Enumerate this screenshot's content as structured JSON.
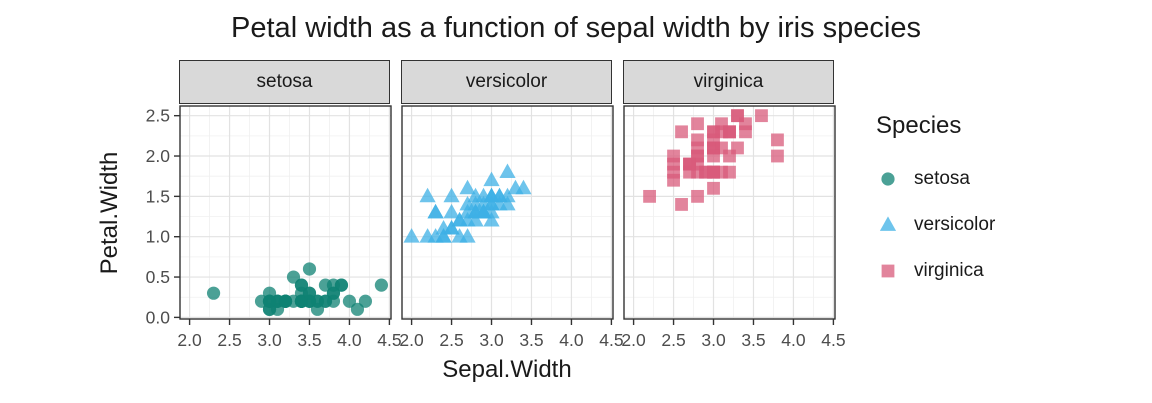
{
  "chart_data": {
    "type": "scatter",
    "title": "Petal width as a function of sepal width by iris species",
    "xlabel": "Sepal.Width",
    "ylabel": "Petal.Width",
    "xlim": [
      1.88,
      4.52
    ],
    "ylim": [
      -0.02,
      2.62
    ],
    "grid": "major+minor",
    "x_ticks": {
      "values": [
        2.0,
        2.5,
        3.0,
        3.5,
        4.0,
        4.5
      ],
      "labels": [
        "2.0",
        "2.5",
        "3.0",
        "3.5",
        "4.0",
        "4.5"
      ]
    },
    "y_ticks": {
      "values": [
        0.0,
        0.5,
        1.0,
        1.5,
        2.0,
        2.5
      ],
      "labels": [
        "0.0",
        "0.5",
        "1.0",
        "1.5",
        "2.0",
        "2.5"
      ]
    },
    "x_minor": [
      2.25,
      2.75,
      3.25,
      3.75,
      4.25
    ],
    "y_minor": [
      0.25,
      0.75,
      1.25,
      1.75,
      2.25
    ],
    "facets": [
      {
        "label": "setosa"
      },
      {
        "label": "versicolor"
      },
      {
        "label": "virginica"
      }
    ],
    "series": [
      {
        "name": "setosa",
        "marker": "circle",
        "color": "#0f8173",
        "points": [
          [
            3.5,
            0.2
          ],
          [
            3.0,
            0.2
          ],
          [
            3.2,
            0.2
          ],
          [
            3.1,
            0.2
          ],
          [
            3.6,
            0.2
          ],
          [
            3.9,
            0.4
          ],
          [
            3.4,
            0.3
          ],
          [
            3.4,
            0.2
          ],
          [
            2.9,
            0.2
          ],
          [
            3.1,
            0.1
          ],
          [
            3.7,
            0.2
          ],
          [
            3.4,
            0.2
          ],
          [
            3.0,
            0.1
          ],
          [
            3.0,
            0.1
          ],
          [
            4.0,
            0.2
          ],
          [
            4.4,
            0.4
          ],
          [
            3.9,
            0.4
          ],
          [
            3.5,
            0.3
          ],
          [
            3.8,
            0.3
          ],
          [
            3.8,
            0.3
          ],
          [
            3.4,
            0.2
          ],
          [
            3.7,
            0.4
          ],
          [
            3.6,
            0.2
          ],
          [
            3.3,
            0.5
          ],
          [
            3.4,
            0.2
          ],
          [
            3.0,
            0.2
          ],
          [
            3.4,
            0.4
          ],
          [
            3.5,
            0.2
          ],
          [
            3.4,
            0.2
          ],
          [
            3.2,
            0.2
          ],
          [
            3.1,
            0.2
          ],
          [
            3.4,
            0.4
          ],
          [
            4.1,
            0.1
          ],
          [
            4.2,
            0.2
          ],
          [
            3.1,
            0.2
          ],
          [
            3.2,
            0.2
          ],
          [
            3.5,
            0.2
          ],
          [
            3.6,
            0.1
          ],
          [
            3.0,
            0.2
          ],
          [
            3.4,
            0.2
          ],
          [
            3.5,
            0.3
          ],
          [
            2.3,
            0.3
          ],
          [
            3.2,
            0.2
          ],
          [
            3.5,
            0.6
          ],
          [
            3.8,
            0.4
          ],
          [
            3.0,
            0.3
          ],
          [
            3.8,
            0.2
          ],
          [
            3.2,
            0.2
          ],
          [
            3.7,
            0.2
          ],
          [
            3.3,
            0.2
          ]
        ]
      },
      {
        "name": "versicolor",
        "marker": "triangle",
        "color": "#3eb0e6",
        "points": [
          [
            3.2,
            1.4
          ],
          [
            3.2,
            1.5
          ],
          [
            3.1,
            1.5
          ],
          [
            2.3,
            1.3
          ],
          [
            2.8,
            1.5
          ],
          [
            2.8,
            1.3
          ],
          [
            3.3,
            1.6
          ],
          [
            2.4,
            1.0
          ],
          [
            2.9,
            1.3
          ],
          [
            2.7,
            1.4
          ],
          [
            2.0,
            1.0
          ],
          [
            3.0,
            1.5
          ],
          [
            2.2,
            1.0
          ],
          [
            2.9,
            1.4
          ],
          [
            2.9,
            1.3
          ],
          [
            3.1,
            1.4
          ],
          [
            3.0,
            1.5
          ],
          [
            2.7,
            1.0
          ],
          [
            2.2,
            1.5
          ],
          [
            2.5,
            1.1
          ],
          [
            3.2,
            1.8
          ],
          [
            2.8,
            1.3
          ],
          [
            2.5,
            1.5
          ],
          [
            2.8,
            1.2
          ],
          [
            2.9,
            1.3
          ],
          [
            3.0,
            1.4
          ],
          [
            2.8,
            1.4
          ],
          [
            3.0,
            1.7
          ],
          [
            2.9,
            1.5
          ],
          [
            2.6,
            1.0
          ],
          [
            2.4,
            1.1
          ],
          [
            2.4,
            1.0
          ],
          [
            2.7,
            1.2
          ],
          [
            2.7,
            1.6
          ],
          [
            3.0,
            1.5
          ],
          [
            3.4,
            1.6
          ],
          [
            3.1,
            1.5
          ],
          [
            2.3,
            1.3
          ],
          [
            3.0,
            1.3
          ],
          [
            2.5,
            1.3
          ],
          [
            2.6,
            1.2
          ],
          [
            3.0,
            1.4
          ],
          [
            2.6,
            1.2
          ],
          [
            2.3,
            1.0
          ],
          [
            2.7,
            1.3
          ],
          [
            3.0,
            1.2
          ],
          [
            2.9,
            1.3
          ],
          [
            2.9,
            1.3
          ],
          [
            2.5,
            1.1
          ],
          [
            2.8,
            1.3
          ]
        ]
      },
      {
        "name": "virginica",
        "marker": "square",
        "color": "#d85b7b",
        "points": [
          [
            3.3,
            2.5
          ],
          [
            2.7,
            1.9
          ],
          [
            3.0,
            2.1
          ],
          [
            2.9,
            1.8
          ],
          [
            3.0,
            2.2
          ],
          [
            3.0,
            2.1
          ],
          [
            2.5,
            1.7
          ],
          [
            2.9,
            1.8
          ],
          [
            2.5,
            1.8
          ],
          [
            3.6,
            2.5
          ],
          [
            3.2,
            2.0
          ],
          [
            2.7,
            1.9
          ],
          [
            3.0,
            2.1
          ],
          [
            2.5,
            2.0
          ],
          [
            2.8,
            2.4
          ],
          [
            3.2,
            2.3
          ],
          [
            3.0,
            1.8
          ],
          [
            3.8,
            2.2
          ],
          [
            2.6,
            2.3
          ],
          [
            2.2,
            1.5
          ],
          [
            3.2,
            2.3
          ],
          [
            2.8,
            2.0
          ],
          [
            2.8,
            2.0
          ],
          [
            2.7,
            1.8
          ],
          [
            3.3,
            2.1
          ],
          [
            3.2,
            1.8
          ],
          [
            2.8,
            1.8
          ],
          [
            3.0,
            1.8
          ],
          [
            2.8,
            2.1
          ],
          [
            3.0,
            1.6
          ],
          [
            2.8,
            1.9
          ],
          [
            3.8,
            2.0
          ],
          [
            2.8,
            2.2
          ],
          [
            2.8,
            1.5
          ],
          [
            2.6,
            1.4
          ],
          [
            3.0,
            2.3
          ],
          [
            3.4,
            2.4
          ],
          [
            3.1,
            1.8
          ],
          [
            3.0,
            1.8
          ],
          [
            3.1,
            2.1
          ],
          [
            3.1,
            2.4
          ],
          [
            3.1,
            2.3
          ],
          [
            2.7,
            1.9
          ],
          [
            3.2,
            2.3
          ],
          [
            3.3,
            2.5
          ],
          [
            3.0,
            2.3
          ],
          [
            2.5,
            1.9
          ],
          [
            3.0,
            2.0
          ],
          [
            3.4,
            2.3
          ],
          [
            3.0,
            1.8
          ]
        ]
      }
    ],
    "legend": {
      "title": "Species",
      "position": "right",
      "items": [
        {
          "label": "setosa",
          "marker": "circle",
          "color": "#0f8173"
        },
        {
          "label": "versicolor",
          "marker": "triangle",
          "color": "#3eb0e6"
        },
        {
          "label": "virginica",
          "marker": "square",
          "color": "#d85b7b"
        }
      ]
    },
    "style": {
      "point_opacity": 0.75,
      "panel_fill": "#ffffff",
      "panel_border": "#333333",
      "grid_major": "#e2e2e2",
      "grid_minor": "#f0f0f0",
      "strip_fill": "#d9d9d9",
      "strip_border": "#333333",
      "axis_tick_color": "#333333",
      "tick_label_color": "#4d4d4d"
    }
  }
}
